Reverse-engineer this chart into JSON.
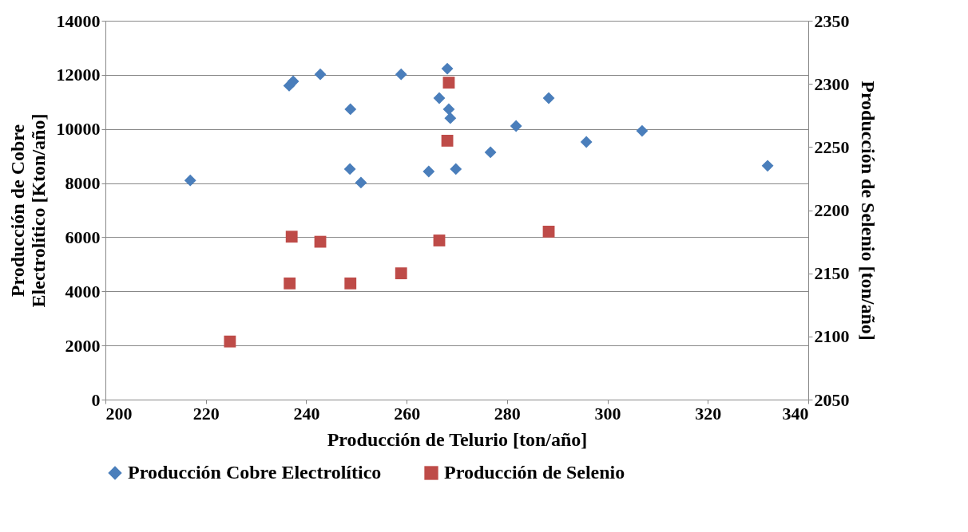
{
  "chart_data": {
    "type": "scatter",
    "xlabel": "Producción de Telurio [ton/año]",
    "ylabel": "Producción de Cobre Electrolítico [Kton/año]",
    "y2label": "Producción de Selenio [ton/año]",
    "xlim": [
      200,
      340
    ],
    "xticks": [
      200,
      220,
      240,
      260,
      280,
      300,
      320,
      340
    ],
    "ylim": [
      0,
      14000
    ],
    "yticks": [
      0,
      2000,
      4000,
      6000,
      8000,
      10000,
      12000,
      14000
    ],
    "y2lim": [
      2050,
      2350
    ],
    "y2ticks": [
      2050,
      2100,
      2150,
      2200,
      2250,
      2300,
      2350
    ],
    "grid": "y",
    "legend": "bottom",
    "series": [
      {
        "name": "Producción Cobre Electrolítico",
        "color": "#4a7ebb",
        "marker": "diamond",
        "x": [
          216.9,
          236.6,
          237.4,
          242.8,
          248.8,
          248.7,
          250.9,
          258.9,
          264.4,
          266.5,
          268.1,
          268.4,
          268.7,
          269.8,
          276.7,
          281.8,
          288.3,
          295.8,
          306.9,
          331.9
        ],
        "values": [
          8100,
          11600,
          11760,
          12020,
          10730,
          8520,
          8020,
          12020,
          8430,
          11140,
          12230,
          10730,
          10400,
          8520,
          9140,
          10110,
          11140,
          9520,
          9930,
          8640
        ]
      },
      {
        "name": "Producción de Selenio",
        "color": "#be4b48",
        "marker": "square",
        "axis": "y2",
        "x": [
          224.8,
          236.7,
          237.1,
          242.8,
          248.8,
          258.9,
          266.5,
          268.1,
          268.4,
          288.3
        ],
        "values": [
          2096,
          2142,
          2179,
          2175,
          2142,
          2150,
          2176,
          2255,
          2301,
          2183
        ]
      }
    ]
  }
}
